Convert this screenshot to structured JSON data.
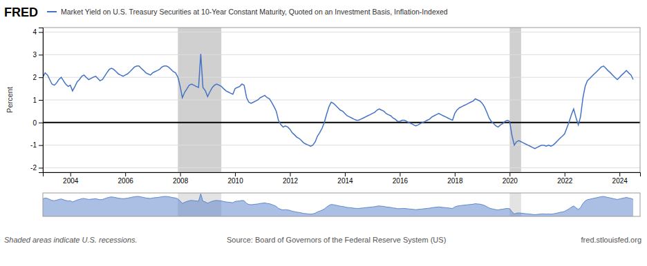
{
  "chart_data": [
    {
      "type": "line",
      "title": "Market Yield on U.S. Treasury Securities at 10-Year Constant Maturity, Quoted on an Investment Basis, Inflation-Indexed",
      "ylabel": "Percent",
      "x": [
        2003.0,
        2003.08,
        2003.17,
        2003.25,
        2003.33,
        2003.42,
        2003.5,
        2003.58,
        2003.67,
        2003.75,
        2003.83,
        2003.92,
        2004.0,
        2004.08,
        2004.17,
        2004.25,
        2004.33,
        2004.42,
        2004.5,
        2004.58,
        2004.67,
        2004.75,
        2004.83,
        2004.92,
        2005.0,
        2005.08,
        2005.17,
        2005.25,
        2005.33,
        2005.42,
        2005.5,
        2005.58,
        2005.67,
        2005.75,
        2005.83,
        2005.92,
        2006.0,
        2006.08,
        2006.17,
        2006.25,
        2006.33,
        2006.42,
        2006.5,
        2006.58,
        2006.67,
        2006.75,
        2006.83,
        2006.92,
        2007.0,
        2007.08,
        2007.17,
        2007.25,
        2007.33,
        2007.42,
        2007.5,
        2007.58,
        2007.67,
        2007.75,
        2007.83,
        2007.92,
        2008.0,
        2008.08,
        2008.17,
        2008.25,
        2008.33,
        2008.42,
        2008.5,
        2008.58,
        2008.67,
        2008.75,
        2008.83,
        2008.92,
        2009.0,
        2009.08,
        2009.17,
        2009.25,
        2009.33,
        2009.42,
        2009.5,
        2009.58,
        2009.67,
        2009.75,
        2009.83,
        2009.92,
        2010.0,
        2010.08,
        2010.17,
        2010.25,
        2010.33,
        2010.42,
        2010.5,
        2010.58,
        2010.67,
        2010.75,
        2010.83,
        2010.92,
        2011.0,
        2011.08,
        2011.17,
        2011.25,
        2011.33,
        2011.42,
        2011.5,
        2011.58,
        2011.67,
        2011.75,
        2011.83,
        2011.92,
        2012.0,
        2012.08,
        2012.17,
        2012.25,
        2012.33,
        2012.42,
        2012.5,
        2012.58,
        2012.67,
        2012.75,
        2012.83,
        2012.92,
        2013.0,
        2013.08,
        2013.17,
        2013.25,
        2013.33,
        2013.42,
        2013.5,
        2013.58,
        2013.67,
        2013.75,
        2013.83,
        2013.92,
        2014.0,
        2014.08,
        2014.17,
        2014.25,
        2014.33,
        2014.42,
        2014.5,
        2014.58,
        2014.67,
        2014.75,
        2014.83,
        2014.92,
        2015.0,
        2015.08,
        2015.17,
        2015.25,
        2015.33,
        2015.42,
        2015.5,
        2015.58,
        2015.67,
        2015.75,
        2015.83,
        2015.92,
        2016.0,
        2016.08,
        2016.17,
        2016.25,
        2016.33,
        2016.42,
        2016.5,
        2016.58,
        2016.67,
        2016.75,
        2016.83,
        2016.92,
        2017.0,
        2017.08,
        2017.17,
        2017.25,
        2017.33,
        2017.42,
        2017.5,
        2017.58,
        2017.67,
        2017.75,
        2017.83,
        2017.92,
        2018.0,
        2018.08,
        2018.17,
        2018.25,
        2018.33,
        2018.42,
        2018.5,
        2018.58,
        2018.67,
        2018.75,
        2018.83,
        2018.92,
        2019.0,
        2019.08,
        2019.17,
        2019.25,
        2019.33,
        2019.42,
        2019.5,
        2019.58,
        2019.67,
        2019.75,
        2019.83,
        2019.92,
        2020.0,
        2020.08,
        2020.17,
        2020.25,
        2020.33,
        2020.42,
        2020.5,
        2020.58,
        2020.67,
        2020.75,
        2020.83,
        2020.92,
        2021.0,
        2021.08,
        2021.17,
        2021.25,
        2021.33,
        2021.42,
        2021.5,
        2021.58,
        2021.67,
        2021.75,
        2021.83,
        2021.92,
        2022.0,
        2022.08,
        2022.17,
        2022.25,
        2022.33,
        2022.42,
        2022.5,
        2022.58,
        2022.67,
        2022.75,
        2022.83,
        2022.92,
        2023.0,
        2023.08,
        2023.17,
        2023.25,
        2023.33,
        2023.42,
        2023.5,
        2023.58,
        2023.67,
        2023.75,
        2023.83,
        2023.92,
        2024.0,
        2024.08,
        2024.17,
        2024.25,
        2024.33,
        2024.42,
        2024.5
      ],
      "series": [
        {
          "color": "#4472C4",
          "values": [
            2.0,
            2.2,
            2.1,
            1.9,
            1.7,
            1.65,
            1.75,
            1.9,
            2.0,
            1.85,
            1.7,
            1.6,
            1.65,
            1.4,
            1.6,
            1.8,
            1.9,
            2.05,
            2.1,
            2.0,
            1.9,
            1.95,
            2.0,
            2.05,
            1.95,
            1.85,
            1.9,
            2.05,
            2.2,
            2.35,
            2.4,
            2.35,
            2.25,
            2.15,
            2.1,
            2.05,
            2.1,
            2.15,
            2.25,
            2.35,
            2.45,
            2.5,
            2.5,
            2.4,
            2.3,
            2.2,
            2.15,
            2.1,
            2.2,
            2.25,
            2.3,
            2.35,
            2.45,
            2.5,
            2.5,
            2.45,
            2.35,
            2.25,
            2.2,
            2.0,
            1.6,
            1.1,
            1.35,
            1.5,
            1.65,
            1.7,
            1.65,
            1.6,
            1.55,
            3.03,
            1.55,
            1.4,
            1.15,
            1.35,
            1.55,
            1.65,
            1.7,
            1.65,
            1.6,
            1.5,
            1.4,
            1.35,
            1.3,
            1.25,
            1.5,
            1.55,
            1.6,
            1.7,
            1.65,
            1.1,
            0.9,
            0.85,
            0.9,
            0.95,
            1.0,
            1.1,
            1.15,
            1.2,
            1.1,
            1.05,
            0.9,
            0.7,
            0.5,
            0.1,
            -0.1,
            -0.2,
            -0.15,
            -0.2,
            -0.3,
            -0.45,
            -0.55,
            -0.65,
            -0.7,
            -0.8,
            -0.9,
            -0.95,
            -1.0,
            -1.05,
            -1.0,
            -0.85,
            -0.6,
            -0.45,
            -0.25,
            0.0,
            0.35,
            0.7,
            0.9,
            0.85,
            0.75,
            0.65,
            0.55,
            0.5,
            0.4,
            0.3,
            0.25,
            0.2,
            0.15,
            0.1,
            0.1,
            0.15,
            0.2,
            0.25,
            0.3,
            0.35,
            0.4,
            0.45,
            0.55,
            0.6,
            0.55,
            0.5,
            0.4,
            0.35,
            0.3,
            0.2,
            0.15,
            0.05,
            0.05,
            0.1,
            0.1,
            0.05,
            0.0,
            -0.05,
            -0.1,
            -0.15,
            -0.1,
            -0.05,
            0.0,
            0.05,
            0.1,
            0.15,
            0.25,
            0.3,
            0.35,
            0.4,
            0.35,
            0.3,
            0.25,
            0.2,
            0.15,
            0.1,
            0.4,
            0.55,
            0.65,
            0.7,
            0.75,
            0.8,
            0.85,
            0.9,
            0.95,
            1.05,
            1.0,
            0.95,
            0.85,
            0.7,
            0.45,
            0.2,
            0.05,
            -0.05,
            -0.15,
            -0.2,
            -0.1,
            -0.05,
            0.05,
            0.1,
            0.05,
            -0.55,
            -1.0,
            -0.85,
            -0.8,
            -0.85,
            -0.9,
            -0.95,
            -1.0,
            -1.05,
            -1.1,
            -1.15,
            -1.1,
            -1.05,
            -1.0,
            -1.0,
            -1.05,
            -1.0,
            -1.05,
            -1.0,
            -0.9,
            -0.8,
            -0.7,
            -0.6,
            -0.5,
            -0.25,
            0.05,
            0.35,
            0.6,
            0.2,
            -0.1,
            0.25,
            1.1,
            1.6,
            1.85,
            1.95,
            2.05,
            2.15,
            2.25,
            2.35,
            2.45,
            2.5,
            2.4,
            2.3,
            2.2,
            2.1,
            2.0,
            1.9,
            2.0,
            2.1,
            2.2,
            2.3,
            2.2,
            2.1,
            1.9
          ]
        }
      ],
      "xlim": [
        2003.0,
        2024.75
      ],
      "xticks": [
        2004,
        2006,
        2008,
        2010,
        2012,
        2014,
        2016,
        2018,
        2020,
        2022,
        2024
      ],
      "ylim": [
        -2.2,
        4.2
      ],
      "yticks": [
        -2,
        -1,
        0,
        1,
        2,
        3,
        4
      ],
      "grid": true,
      "recessions": [
        [
          2007.917,
          2009.5
        ],
        [
          2020.0,
          2020.417
        ]
      ],
      "annotations": [
        "FRED",
        "Shaded areas indicate U.S. recessions.",
        "Source: Board of Governors of the Federal Reserve System (US)",
        "fred.stlouisfed.org"
      ]
    },
    {
      "type": "area",
      "x": [
        2003.0,
        2003.08,
        2003.17,
        2003.25,
        2003.33,
        2003.42,
        2003.5,
        2003.58,
        2003.67,
        2003.75,
        2003.83,
        2003.92,
        2004.0,
        2004.08,
        2004.17,
        2004.25,
        2004.33,
        2004.42,
        2004.5,
        2004.58,
        2004.67,
        2004.75,
        2004.83,
        2004.92,
        2005.0,
        2005.08,
        2005.17,
        2005.25,
        2005.33,
        2005.42,
        2005.5,
        2005.58,
        2005.67,
        2005.75,
        2005.83,
        2005.92,
        2006.0,
        2006.08,
        2006.17,
        2006.25,
        2006.33,
        2006.42,
        2006.5,
        2006.58,
        2006.67,
        2006.75,
        2006.83,
        2006.92,
        2007.0,
        2007.08,
        2007.17,
        2007.25,
        2007.33,
        2007.42,
        2007.5,
        2007.58,
        2007.67,
        2007.75,
        2007.83,
        2007.92,
        2008.0,
        2008.08,
        2008.17,
        2008.25,
        2008.33,
        2008.42,
        2008.5,
        2008.58,
        2008.67,
        2008.75,
        2008.83,
        2008.92,
        2009.0,
        2009.08,
        2009.17,
        2009.25,
        2009.33,
        2009.42,
        2009.5,
        2009.58,
        2009.67,
        2009.75,
        2009.83,
        2009.92,
        2010.0,
        2010.08,
        2010.17,
        2010.25,
        2010.33,
        2010.42,
        2010.5,
        2010.58,
        2010.67,
        2010.75,
        2010.83,
        2010.92,
        2011.0,
        2011.08,
        2011.17,
        2011.25,
        2011.33,
        2011.42,
        2011.5,
        2011.58,
        2011.67,
        2011.75,
        2011.83,
        2011.92,
        2012.0,
        2012.08,
        2012.17,
        2012.25,
        2012.33,
        2012.42,
        2012.5,
        2012.58,
        2012.67,
        2012.75,
        2012.83,
        2012.92,
        2013.0,
        2013.08,
        2013.17,
        2013.25,
        2013.33,
        2013.42,
        2013.5,
        2013.58,
        2013.67,
        2013.75,
        2013.83,
        2013.92,
        2014.0,
        2014.08,
        2014.17,
        2014.25,
        2014.33,
        2014.42,
        2014.5,
        2014.58,
        2014.67,
        2014.75,
        2014.83,
        2014.92,
        2015.0,
        2015.08,
        2015.17,
        2015.25,
        2015.33,
        2015.42,
        2015.5,
        2015.58,
        2015.67,
        2015.75,
        2015.83,
        2015.92,
        2016.0,
        2016.08,
        2016.17,
        2016.25,
        2016.33,
        2016.42,
        2016.5,
        2016.58,
        2016.67,
        2016.75,
        2016.83,
        2016.92,
        2017.0,
        2017.08,
        2017.17,
        2017.25,
        2017.33,
        2017.42,
        2017.5,
        2017.58,
        2017.67,
        2017.75,
        2017.83,
        2017.92,
        2018.0,
        2018.08,
        2018.17,
        2018.25,
        2018.33,
        2018.42,
        2018.5,
        2018.58,
        2018.67,
        2018.75,
        2018.83,
        2018.92,
        2019.0,
        2019.08,
        2019.17,
        2019.25,
        2019.33,
        2019.42,
        2019.5,
        2019.58,
        2019.67,
        2019.75,
        2019.83,
        2019.92,
        2020.0,
        2020.08,
        2020.17,
        2020.25,
        2020.33,
        2020.42,
        2020.5,
        2020.58,
        2020.67,
        2020.75,
        2020.83,
        2020.92,
        2021.0,
        2021.08,
        2021.17,
        2021.25,
        2021.33,
        2021.42,
        2021.5,
        2021.58,
        2021.67,
        2021.75,
        2021.83,
        2021.92,
        2022.0,
        2022.08,
        2022.17,
        2022.25,
        2022.33,
        2022.42,
        2022.5,
        2022.58,
        2022.67,
        2022.75,
        2022.83,
        2022.92,
        2023.0,
        2023.08,
        2023.17,
        2023.25,
        2023.33,
        2023.42,
        2023.5,
        2023.58,
        2023.67,
        2023.75,
        2023.83,
        2023.92,
        2024.0,
        2024.08,
        2024.17,
        2024.25,
        2024.33,
        2024.42,
        2024.5
      ],
      "series": [
        {
          "color": "#4472C4",
          "values": [
            2.0,
            2.2,
            2.1,
            1.9,
            1.7,
            1.65,
            1.75,
            1.9,
            2.0,
            1.85,
            1.7,
            1.6,
            1.65,
            1.4,
            1.6,
            1.8,
            1.9,
            2.05,
            2.1,
            2.0,
            1.9,
            1.95,
            2.0,
            2.05,
            1.95,
            1.85,
            1.9,
            2.05,
            2.2,
            2.35,
            2.4,
            2.35,
            2.25,
            2.15,
            2.1,
            2.05,
            2.1,
            2.15,
            2.25,
            2.35,
            2.45,
            2.5,
            2.5,
            2.4,
            2.3,
            2.2,
            2.15,
            2.1,
            2.2,
            2.25,
            2.3,
            2.35,
            2.45,
            2.5,
            2.5,
            2.45,
            2.35,
            2.25,
            2.2,
            2.0,
            1.6,
            1.1,
            1.35,
            1.5,
            1.65,
            1.7,
            1.65,
            1.6,
            1.55,
            3.03,
            1.55,
            1.4,
            1.15,
            1.35,
            1.55,
            1.65,
            1.7,
            1.65,
            1.6,
            1.5,
            1.4,
            1.35,
            1.3,
            1.25,
            1.5,
            1.55,
            1.6,
            1.7,
            1.65,
            1.1,
            0.9,
            0.85,
            0.9,
            0.95,
            1.0,
            1.1,
            1.15,
            1.2,
            1.1,
            1.05,
            0.9,
            0.7,
            0.5,
            0.1,
            -0.1,
            -0.2,
            -0.15,
            -0.2,
            -0.3,
            -0.45,
            -0.55,
            -0.65,
            -0.7,
            -0.8,
            -0.9,
            -0.95,
            -1.0,
            -1.05,
            -1.0,
            -0.85,
            -0.6,
            -0.45,
            -0.25,
            0.0,
            0.35,
            0.7,
            0.9,
            0.85,
            0.75,
            0.65,
            0.55,
            0.5,
            0.4,
            0.3,
            0.25,
            0.2,
            0.15,
            0.1,
            0.1,
            0.15,
            0.2,
            0.25,
            0.3,
            0.35,
            0.4,
            0.45,
            0.55,
            0.6,
            0.55,
            0.5,
            0.4,
            0.35,
            0.3,
            0.2,
            0.15,
            0.05,
            0.05,
            0.1,
            0.1,
            0.05,
            0.0,
            -0.05,
            -0.1,
            -0.15,
            -0.1,
            -0.05,
            0.0,
            0.05,
            0.1,
            0.15,
            0.25,
            0.3,
            0.35,
            0.4,
            0.35,
            0.3,
            0.25,
            0.2,
            0.15,
            0.1,
            0.4,
            0.55,
            0.65,
            0.7,
            0.75,
            0.8,
            0.85,
            0.9,
            0.95,
            1.05,
            1.0,
            0.95,
            0.85,
            0.7,
            0.45,
            0.2,
            0.05,
            -0.05,
            -0.15,
            -0.2,
            -0.1,
            -0.05,
            0.05,
            0.1,
            0.05,
            -0.55,
            -1.0,
            -0.85,
            -0.8,
            -0.85,
            -0.9,
            -0.95,
            -1.0,
            -1.05,
            -1.1,
            -1.15,
            -1.1,
            -1.05,
            -1.0,
            -1.0,
            -1.05,
            -1.0,
            -1.05,
            -1.0,
            -0.9,
            -0.8,
            -0.7,
            -0.6,
            -0.5,
            -0.25,
            0.05,
            0.35,
            0.6,
            0.2,
            -0.1,
            0.25,
            1.1,
            1.6,
            1.85,
            1.95,
            2.05,
            2.15,
            2.25,
            2.35,
            2.45,
            2.5,
            2.4,
            2.3,
            2.2,
            2.1,
            2.0,
            1.9,
            2.0,
            2.1,
            2.2,
            2.3,
            2.2,
            2.1,
            1.9
          ]
        }
      ],
      "xlim": [
        2003.0,
        2024.75
      ],
      "ylim": [
        -1.5,
        3.2
      ],
      "recessions": [
        [
          2007.917,
          2009.5
        ],
        [
          2020.0,
          2020.417
        ]
      ],
      "tick_labels": false
    }
  ]
}
